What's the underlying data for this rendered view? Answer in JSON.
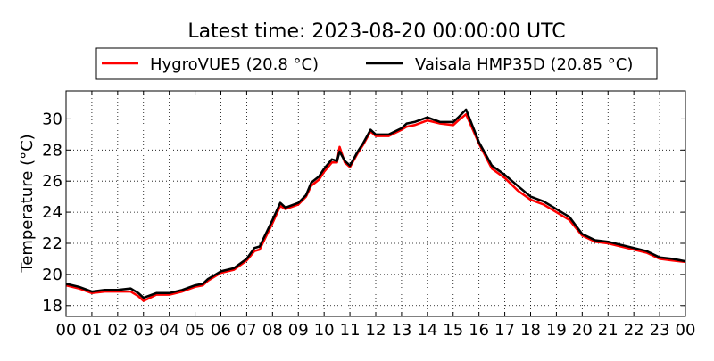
{
  "chart_data": {
    "type": "line",
    "title": "Latest time: 2023-08-20 00:00:00 UTC",
    "xlabel": "",
    "ylabel": "Temperature (°C)",
    "xlim": [
      0,
      24
    ],
    "ylim": [
      17.3,
      31.8
    ],
    "grid": true,
    "legend_position": "top",
    "x_ticks": [
      "00",
      "01",
      "02",
      "03",
      "04",
      "05",
      "06",
      "07",
      "08",
      "09",
      "10",
      "11",
      "12",
      "13",
      "14",
      "15",
      "16",
      "17",
      "18",
      "19",
      "20",
      "21",
      "22",
      "23",
      "00"
    ],
    "y_ticks": [
      18,
      20,
      22,
      24,
      26,
      28,
      30
    ],
    "x": [
      0,
      0.5,
      1,
      1.5,
      2,
      2.5,
      2.8,
      3,
      3.5,
      4,
      4.5,
      5,
      5.3,
      5.5,
      6,
      6.5,
      7,
      7.3,
      7.5,
      8,
      8.3,
      8.5,
      9,
      9.3,
      9.5,
      9.8,
      10,
      10.3,
      10.5,
      10.6,
      10.8,
      11,
      11.3,
      11.5,
      11.8,
      12,
      12.5,
      13,
      13.2,
      13.5,
      14,
      14.5,
      15,
      15.2,
      15.5,
      16,
      16.5,
      17,
      17.5,
      18,
      18.5,
      19,
      19.5,
      20,
      20.5,
      21,
      21.5,
      22,
      22.5,
      23,
      23.5,
      24
    ],
    "series": [
      {
        "name": "HygroVUE5 (20.8 °C)",
        "color": "#ff0000",
        "values": [
          19.3,
          19.1,
          18.8,
          18.9,
          18.9,
          18.9,
          18.6,
          18.3,
          18.7,
          18.7,
          18.9,
          19.2,
          19.3,
          19.6,
          20.1,
          20.3,
          20.9,
          21.5,
          21.6,
          23.3,
          24.4,
          24.2,
          24.5,
          25,
          25.7,
          26.1,
          26.6,
          27.2,
          27.2,
          28.2,
          27.2,
          26.9,
          27.8,
          28.3,
          29.2,
          28.9,
          28.9,
          29.3,
          29.5,
          29.6,
          29.9,
          29.7,
          29.6,
          29.9,
          30.3,
          28.4,
          26.8,
          26.2,
          25.4,
          24.8,
          24.5,
          24,
          23.5,
          22.5,
          22.1,
          22,
          21.8,
          21.6,
          21.4,
          21,
          20.9,
          20.8
        ]
      },
      {
        "name": "Vaisala HMP35D (20.85 °C)",
        "color": "#000000",
        "values": [
          19.4,
          19.2,
          18.9,
          19,
          19,
          19.1,
          18.8,
          18.5,
          18.8,
          18.8,
          19,
          19.3,
          19.4,
          19.7,
          20.2,
          20.4,
          21,
          21.7,
          21.8,
          23.5,
          24.6,
          24.3,
          24.6,
          25.1,
          25.9,
          26.3,
          26.8,
          27.4,
          27.3,
          27.9,
          27.3,
          27,
          27.9,
          28.4,
          29.3,
          29,
          29,
          29.4,
          29.7,
          29.8,
          30.1,
          29.8,
          29.8,
          30.1,
          30.6,
          28.5,
          27,
          26.4,
          25.7,
          25,
          24.7,
          24.2,
          23.7,
          22.6,
          22.2,
          22.1,
          21.9,
          21.7,
          21.5,
          21.1,
          21,
          20.85
        ]
      }
    ]
  }
}
